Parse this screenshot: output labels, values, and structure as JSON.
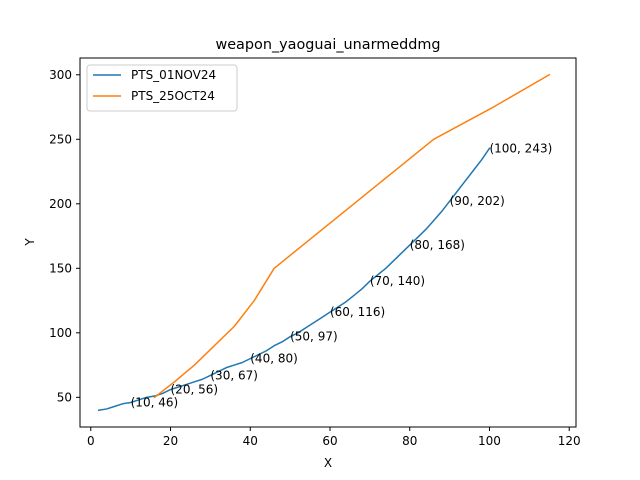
{
  "chart_data": {
    "type": "line",
    "title": "weapon_yaoguai_unarmeddmg",
    "xlabel": "X",
    "ylabel": "Y",
    "xlim": [
      -2.7,
      121.7
    ],
    "ylim": [
      27,
      313
    ],
    "xticks": [
      0,
      20,
      40,
      60,
      80,
      100,
      120
    ],
    "yticks": [
      50,
      100,
      150,
      200,
      250,
      300
    ],
    "grid": false,
    "legend_position": "top-left",
    "series": [
      {
        "name": "PTS_01NOV24",
        "color": "#1f77b4",
        "x": [
          2,
          4,
          6,
          8,
          10,
          12,
          14,
          16,
          18,
          20,
          22,
          24,
          26,
          28,
          30,
          32,
          34,
          36,
          38,
          40,
          42,
          44,
          46,
          48,
          50,
          52,
          54,
          56,
          58,
          60,
          62,
          64,
          66,
          68,
          70,
          72,
          74,
          76,
          78,
          80,
          82,
          84,
          86,
          88,
          90,
          92,
          94,
          96,
          98,
          100
        ],
        "y": [
          40,
          41,
          43,
          45,
          46,
          48,
          50,
          51,
          53,
          56,
          58,
          60,
          62,
          64,
          67,
          70,
          73,
          75,
          77,
          80,
          83,
          86,
          90,
          93,
          97,
          100,
          104,
          108,
          112,
          116,
          120,
          124,
          129,
          134,
          140,
          145,
          150,
          156,
          162,
          168,
          174,
          180,
          187,
          194,
          202,
          210,
          218,
          226,
          234,
          243
        ]
      },
      {
        "name": "PTS_25OCT24",
        "color": "#ff7f0e",
        "x": [
          16,
          21,
          26,
          31,
          36,
          41,
          46,
          56,
          66,
          76,
          86,
          101,
          115
        ],
        "y": [
          50,
          62,
          75,
          90,
          105,
          125,
          150,
          175,
          200,
          225,
          250,
          275,
          300
        ]
      }
    ],
    "annotations": [
      {
        "x": 10,
        "y": 46,
        "text": "(10, 46)"
      },
      {
        "x": 20,
        "y": 56,
        "text": "(20, 56)"
      },
      {
        "x": 30,
        "y": 67,
        "text": "(30, 67)"
      },
      {
        "x": 40,
        "y": 80,
        "text": "(40, 80)"
      },
      {
        "x": 50,
        "y": 97,
        "text": "(50, 97)"
      },
      {
        "x": 60,
        "y": 116,
        "text": "(60, 116)"
      },
      {
        "x": 70,
        "y": 140,
        "text": "(70, 140)"
      },
      {
        "x": 80,
        "y": 168,
        "text": "(80, 168)"
      },
      {
        "x": 90,
        "y": 202,
        "text": "(90, 202)"
      },
      {
        "x": 100,
        "y": 243,
        "text": "(100, 243)"
      }
    ]
  }
}
